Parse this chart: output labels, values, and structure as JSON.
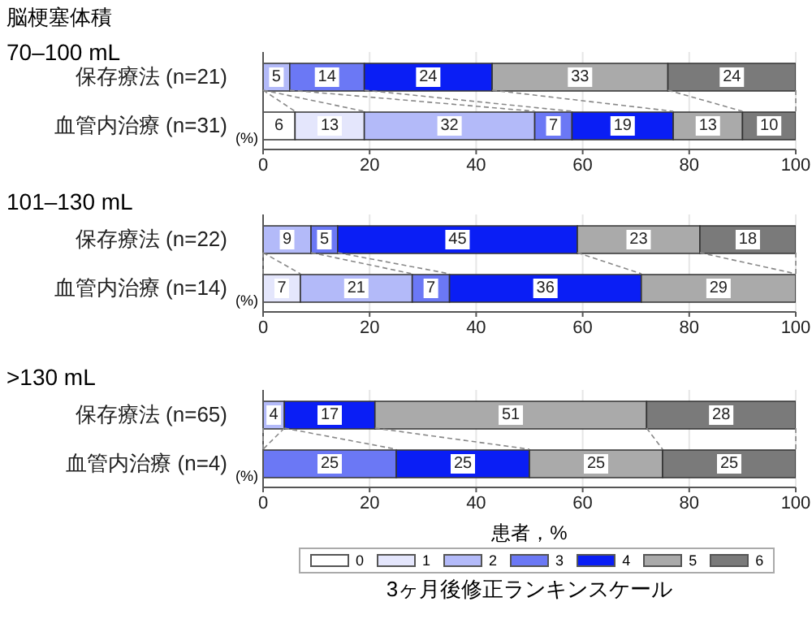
{
  "chart_data": [
    {
      "type": "bar",
      "orientation": "horizontal",
      "stacked": true,
      "title": "脳梗塞体積",
      "subtitle": "70–100 mL",
      "categories": [
        "保存療法 (n=21)",
        "血管内治療 (n=31)"
      ],
      "series": [
        {
          "color": "#ffffff",
          "values": [
            null,
            6
          ]
        },
        {
          "color": "#e4e6fc",
          "values": [
            null,
            13
          ]
        },
        {
          "color": "#b3baf9",
          "values": [
            5,
            32
          ]
        },
        {
          "color": "#6b78f5",
          "values": [
            14,
            7
          ]
        },
        {
          "color": "#0a1ef5",
          "values": [
            24,
            19
          ]
        },
        {
          "color": "#aaaaaa",
          "values": [
            33,
            13
          ]
        },
        {
          "color": "#7a7a7a",
          "values": [
            24,
            10
          ]
        }
      ],
      "xlim": [
        0,
        100
      ],
      "xticks": [
        0,
        20,
        40,
        60,
        80,
        100
      ],
      "grid": "x",
      "data_labels": true,
      "annotations": [
        "(%)"
      ]
    },
    {
      "type": "bar",
      "orientation": "horizontal",
      "stacked": true,
      "title": "101–130 mL",
      "categories": [
        "保存療法 (n=22)",
        "血管内治療 (n=14)"
      ],
      "series": [
        {
          "color": "#ffffff",
          "values": [
            null,
            null
          ]
        },
        {
          "color": "#e4e6fc",
          "values": [
            null,
            7
          ]
        },
        {
          "color": "#b3baf9",
          "values": [
            9,
            21
          ]
        },
        {
          "color": "#6b78f5",
          "values": [
            5,
            7
          ]
        },
        {
          "color": "#0a1ef5",
          "values": [
            45,
            36
          ]
        },
        {
          "color": "#aaaaaa",
          "values": [
            23,
            29
          ]
        },
        {
          "color": "#7a7a7a",
          "values": [
            18,
            null
          ]
        }
      ],
      "xlim": [
        0,
        100
      ],
      "xticks": [
        0,
        20,
        40,
        60,
        80,
        100
      ],
      "grid": "x",
      "data_labels": true,
      "annotations": [
        "(%)"
      ]
    },
    {
      "type": "bar",
      "orientation": "horizontal",
      "stacked": true,
      "title": ">130 mL",
      "xlabel": "患者，%",
      "legend_title": "3ヶ月後修正ランキンスケール",
      "legend": "bottom",
      "categories": [
        "保存療法 (n=65)",
        "血管内治療 (n=4)"
      ],
      "series": [
        {
          "name": "0",
          "color": "#ffffff",
          "values": [
            null,
            null
          ]
        },
        {
          "name": "1",
          "color": "#e4e6fc",
          "values": [
            null,
            null
          ]
        },
        {
          "name": "2",
          "color": "#b3baf9",
          "values": [
            4,
            null
          ]
        },
        {
          "name": "3",
          "color": "#6b78f5",
          "values": [
            null,
            25
          ]
        },
        {
          "name": "4",
          "color": "#0a1ef5",
          "values": [
            17,
            25
          ]
        },
        {
          "name": "5",
          "color": "#aaaaaa",
          "values": [
            51,
            25
          ]
        },
        {
          "name": "6",
          "color": "#7a7a7a",
          "values": [
            28,
            25
          ]
        }
      ],
      "xlim": [
        0,
        100
      ],
      "xticks": [
        0,
        20,
        40,
        60,
        80,
        100
      ],
      "grid": "x",
      "data_labels": true,
      "annotations": [
        "(%)"
      ]
    }
  ]
}
